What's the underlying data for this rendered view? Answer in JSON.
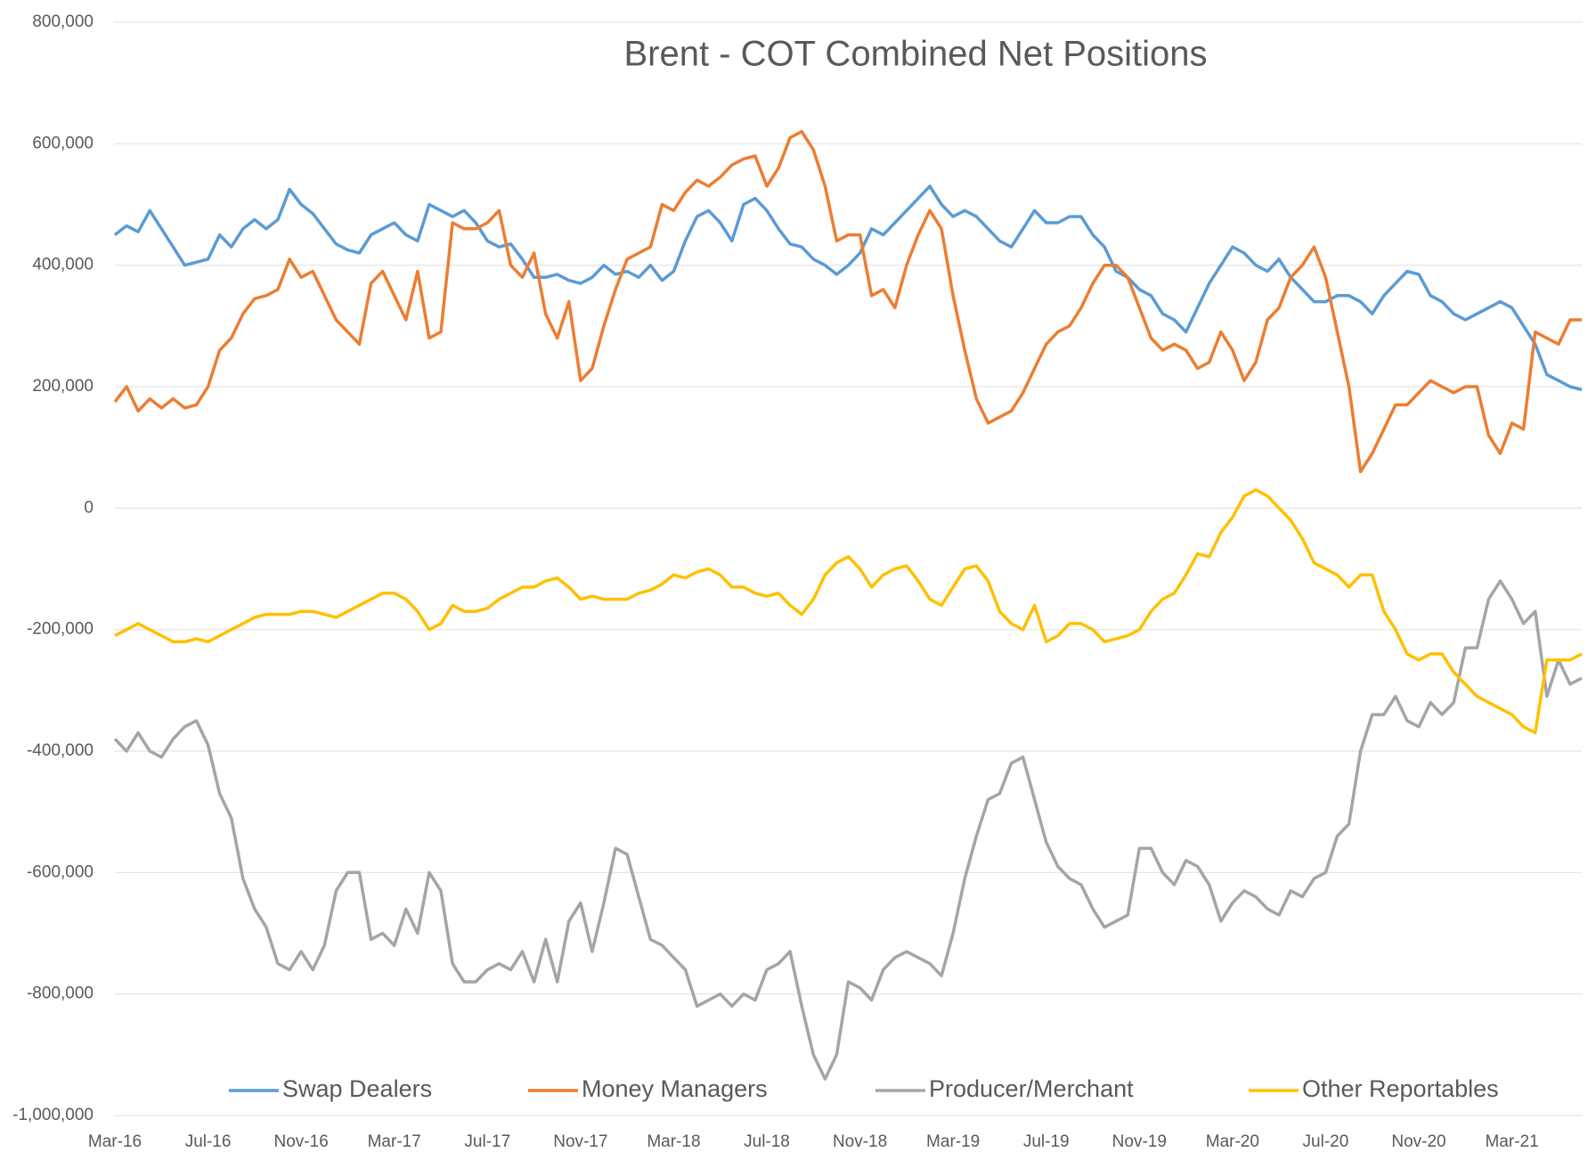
{
  "chart_data": {
    "type": "line",
    "title": "Brent - COT Combined Net Positions",
    "categories": [
      "Mar-16",
      null,
      null,
      null,
      null,
      null,
      null,
      null,
      "Jul-16",
      null,
      null,
      null,
      null,
      null,
      null,
      null,
      "Nov-16",
      null,
      null,
      null,
      null,
      null,
      null,
      null,
      "Mar-17",
      null,
      null,
      null,
      null,
      null,
      null,
      null,
      "Jul-17",
      null,
      null,
      null,
      null,
      null,
      null,
      null,
      "Nov-17",
      null,
      null,
      null,
      null,
      null,
      null,
      null,
      "Mar-18",
      null,
      null,
      null,
      null,
      null,
      null,
      null,
      "Jul-18",
      null,
      null,
      null,
      null,
      null,
      null,
      null,
      "Nov-18",
      null,
      null,
      null,
      null,
      null,
      null,
      null,
      "Mar-19",
      null,
      null,
      null,
      null,
      null,
      null,
      null,
      "Jul-19",
      null,
      null,
      null,
      null,
      null,
      null,
      null,
      "Nov-19",
      null,
      null,
      null,
      null,
      null,
      null,
      null,
      "Mar-20",
      null,
      null,
      null,
      null,
      null,
      null,
      null,
      "Jul-20",
      null,
      null,
      null,
      null,
      null,
      null,
      null,
      "Nov-20",
      null,
      null,
      null,
      null,
      null,
      null,
      null,
      "Mar-21",
      null,
      null,
      null,
      null,
      null,
      null
    ],
    "series": [
      {
        "name": "Swap Dealers",
        "color": "#5b9bd5",
        "values": [
          450000,
          465000,
          455000,
          490000,
          460000,
          430000,
          400000,
          405000,
          410000,
          450000,
          430000,
          460000,
          475000,
          460000,
          475000,
          525000,
          500000,
          485000,
          460000,
          435000,
          425000,
          420000,
          450000,
          460000,
          470000,
          450000,
          440000,
          500000,
          490000,
          480000,
          490000,
          470000,
          440000,
          430000,
          435000,
          410000,
          380000,
          380000,
          385000,
          375000,
          370000,
          380000,
          400000,
          385000,
          390000,
          380000,
          400000,
          375000,
          390000,
          440000,
          480000,
          490000,
          470000,
          440000,
          500000,
          510000,
          490000,
          460000,
          435000,
          430000,
          410000,
          400000,
          385000,
          400000,
          420000,
          460000,
          450000,
          470000,
          490000,
          510000,
          530000,
          500000,
          480000,
          490000,
          480000,
          460000,
          440000,
          430000,
          460000,
          490000,
          470000,
          470000,
          480000,
          480000,
          450000,
          430000,
          390000,
          380000,
          360000,
          350000,
          320000,
          310000,
          290000,
          330000,
          370000,
          400000,
          430000,
          420000,
          400000,
          390000,
          410000,
          380000,
          360000,
          340000,
          340000,
          350000,
          350000,
          340000,
          320000,
          350000,
          370000,
          390000,
          385000,
          350000,
          340000,
          320000,
          310000,
          320000,
          330000,
          340000,
          330000,
          300000,
          270000,
          220000,
          210000,
          200000,
          195000
        ]
      },
      {
        "name": "Money Managers",
        "color": "#ed7d31",
        "values": [
          175000,
          200000,
          160000,
          180000,
          165000,
          180000,
          165000,
          170000,
          200000,
          260000,
          280000,
          320000,
          345000,
          350000,
          360000,
          410000,
          380000,
          390000,
          350000,
          310000,
          290000,
          270000,
          370000,
          390000,
          350000,
          310000,
          390000,
          280000,
          290000,
          470000,
          460000,
          460000,
          470000,
          490000,
          400000,
          380000,
          420000,
          320000,
          280000,
          340000,
          210000,
          230000,
          300000,
          360000,
          410000,
          420000,
          430000,
          500000,
          490000,
          520000,
          540000,
          530000,
          545000,
          565000,
          575000,
          580000,
          530000,
          560000,
          610000,
          620000,
          590000,
          530000,
          440000,
          450000,
          450000,
          350000,
          360000,
          330000,
          400000,
          450000,
          490000,
          460000,
          350000,
          260000,
          180000,
          140000,
          150000,
          160000,
          190000,
          230000,
          270000,
          290000,
          300000,
          330000,
          370000,
          400000,
          400000,
          380000,
          330000,
          280000,
          260000,
          270000,
          260000,
          230000,
          240000,
          290000,
          260000,
          210000,
          240000,
          310000,
          330000,
          380000,
          400000,
          430000,
          380000,
          290000,
          200000,
          60000,
          90000,
          130000,
          170000,
          170000,
          190000,
          210000,
          200000,
          190000,
          200000,
          200000,
          120000,
          90000,
          140000,
          130000,
          290000,
          280000,
          270000,
          310000,
          310000
        ]
      },
      {
        "name": "Producer/Merchant",
        "color": "#a5a5a5",
        "values": [
          -380000,
          -400000,
          -370000,
          -400000,
          -410000,
          -380000,
          -360000,
          -350000,
          -390000,
          -470000,
          -510000,
          -610000,
          -660000,
          -690000,
          -750000,
          -760000,
          -730000,
          -760000,
          -720000,
          -630000,
          -600000,
          -600000,
          -710000,
          -700000,
          -720000,
          -660000,
          -700000,
          -600000,
          -630000,
          -750000,
          -780000,
          -780000,
          -760000,
          -750000,
          -760000,
          -730000,
          -780000,
          -710000,
          -780000,
          -680000,
          -650000,
          -730000,
          -650000,
          -560000,
          -570000,
          -640000,
          -710000,
          -720000,
          -740000,
          -760000,
          -820000,
          -810000,
          -800000,
          -820000,
          -800000,
          -810000,
          -760000,
          -750000,
          -730000,
          -820000,
          -900000,
          -940000,
          -900000,
          -780000,
          -790000,
          -810000,
          -760000,
          -740000,
          -730000,
          -740000,
          -750000,
          -770000,
          -700000,
          -610000,
          -540000,
          -480000,
          -470000,
          -420000,
          -410000,
          -480000,
          -550000,
          -590000,
          -610000,
          -620000,
          -660000,
          -690000,
          -680000,
          -670000,
          -560000,
          -560000,
          -600000,
          -620000,
          -580000,
          -590000,
          -620000,
          -680000,
          -650000,
          -630000,
          -640000,
          -660000,
          -670000,
          -630000,
          -640000,
          -610000,
          -600000,
          -540000,
          -520000,
          -400000,
          -340000,
          -340000,
          -310000,
          -350000,
          -360000,
          -320000,
          -340000,
          -320000,
          -230000,
          -230000,
          -150000,
          -120000,
          -150000,
          -190000,
          -170000,
          -310000,
          -250000,
          -290000,
          -280000
        ]
      },
      {
        "name": "Other Reportables",
        "color": "#ffc000",
        "values": [
          -210000,
          -200000,
          -190000,
          -200000,
          -210000,
          -220000,
          -220000,
          -215000,
          -220000,
          -210000,
          -200000,
          -190000,
          -180000,
          -175000,
          -175000,
          -175000,
          -170000,
          -170000,
          -175000,
          -180000,
          -170000,
          -160000,
          -150000,
          -140000,
          -140000,
          -150000,
          -170000,
          -200000,
          -190000,
          -160000,
          -170000,
          -170000,
          -165000,
          -150000,
          -140000,
          -130000,
          -130000,
          -120000,
          -115000,
          -130000,
          -150000,
          -145000,
          -150000,
          -150000,
          -150000,
          -140000,
          -135000,
          -125000,
          -110000,
          -115000,
          -105000,
          -100000,
          -110000,
          -130000,
          -130000,
          -140000,
          -145000,
          -140000,
          -160000,
          -175000,
          -150000,
          -110000,
          -90000,
          -80000,
          -100000,
          -130000,
          -110000,
          -100000,
          -95000,
          -120000,
          -150000,
          -160000,
          -130000,
          -100000,
          -95000,
          -120000,
          -170000,
          -190000,
          -200000,
          -160000,
          -220000,
          -210000,
          -190000,
          -190000,
          -200000,
          -220000,
          -215000,
          -210000,
          -200000,
          -170000,
          -150000,
          -140000,
          -110000,
          -75000,
          -80000,
          -40000,
          -15000,
          20000,
          30000,
          20000,
          0,
          -20000,
          -50000,
          -90000,
          -100000,
          -110000,
          -130000,
          -110000,
          -110000,
          -170000,
          -200000,
          -240000,
          -250000,
          -240000,
          -240000,
          -270000,
          -290000,
          -310000,
          -320000,
          -330000,
          -340000,
          -360000,
          -370000,
          -250000,
          -250000,
          -250000,
          -240000
        ]
      }
    ],
    "ylim": [
      -1000000,
      800000
    ],
    "yticks": [
      {
        "value": -1000000,
        "label": "-1,000,000"
      },
      {
        "value": -800000,
        "label": "-800,000"
      },
      {
        "value": -600000,
        "label": "-600,000"
      },
      {
        "value": -400000,
        "label": "-400,000"
      },
      {
        "value": -200000,
        "label": "-200,000"
      },
      0,
      {
        "value": 200000,
        "label": "200,000"
      },
      {
        "value": 400000,
        "label": "400,000"
      },
      {
        "value": 600000,
        "label": "600,000"
      },
      {
        "value": 800000,
        "label": "800,000"
      }
    ],
    "grid": true,
    "legend": "bottom"
  }
}
